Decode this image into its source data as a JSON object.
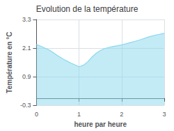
{
  "chart_data": {
    "type": "area",
    "title": "Evolution de la température",
    "xlabel": "heure par heure",
    "ylabel": "Température en °C",
    "x": [
      0,
      0.1,
      0.2,
      0.3,
      0.4,
      0.5,
      0.6,
      0.7,
      0.8,
      0.9,
      1.0,
      1.1,
      1.2,
      1.3,
      1.4,
      1.5,
      1.6,
      1.7,
      1.8,
      1.9,
      2.0,
      2.1,
      2.2,
      2.3,
      2.4,
      2.5,
      2.6,
      2.7,
      2.8,
      2.9,
      3.0
    ],
    "values": [
      2.25,
      2.18,
      2.1,
      2.02,
      1.9,
      1.78,
      1.67,
      1.57,
      1.48,
      1.4,
      1.32,
      1.38,
      1.52,
      1.72,
      1.88,
      2.0,
      2.08,
      2.13,
      2.17,
      2.2,
      2.24,
      2.28,
      2.33,
      2.38,
      2.43,
      2.49,
      2.55,
      2.6,
      2.65,
      2.68,
      2.72
    ],
    "color": "#88d8ee",
    "xlim": [
      0,
      3
    ],
    "xticks": [
      0,
      1,
      2,
      3
    ],
    "ylim": [
      -0.3,
      3.3
    ],
    "yticks": [
      -0.3,
      0.9,
      2.1,
      3.3
    ],
    "grid": true
  }
}
